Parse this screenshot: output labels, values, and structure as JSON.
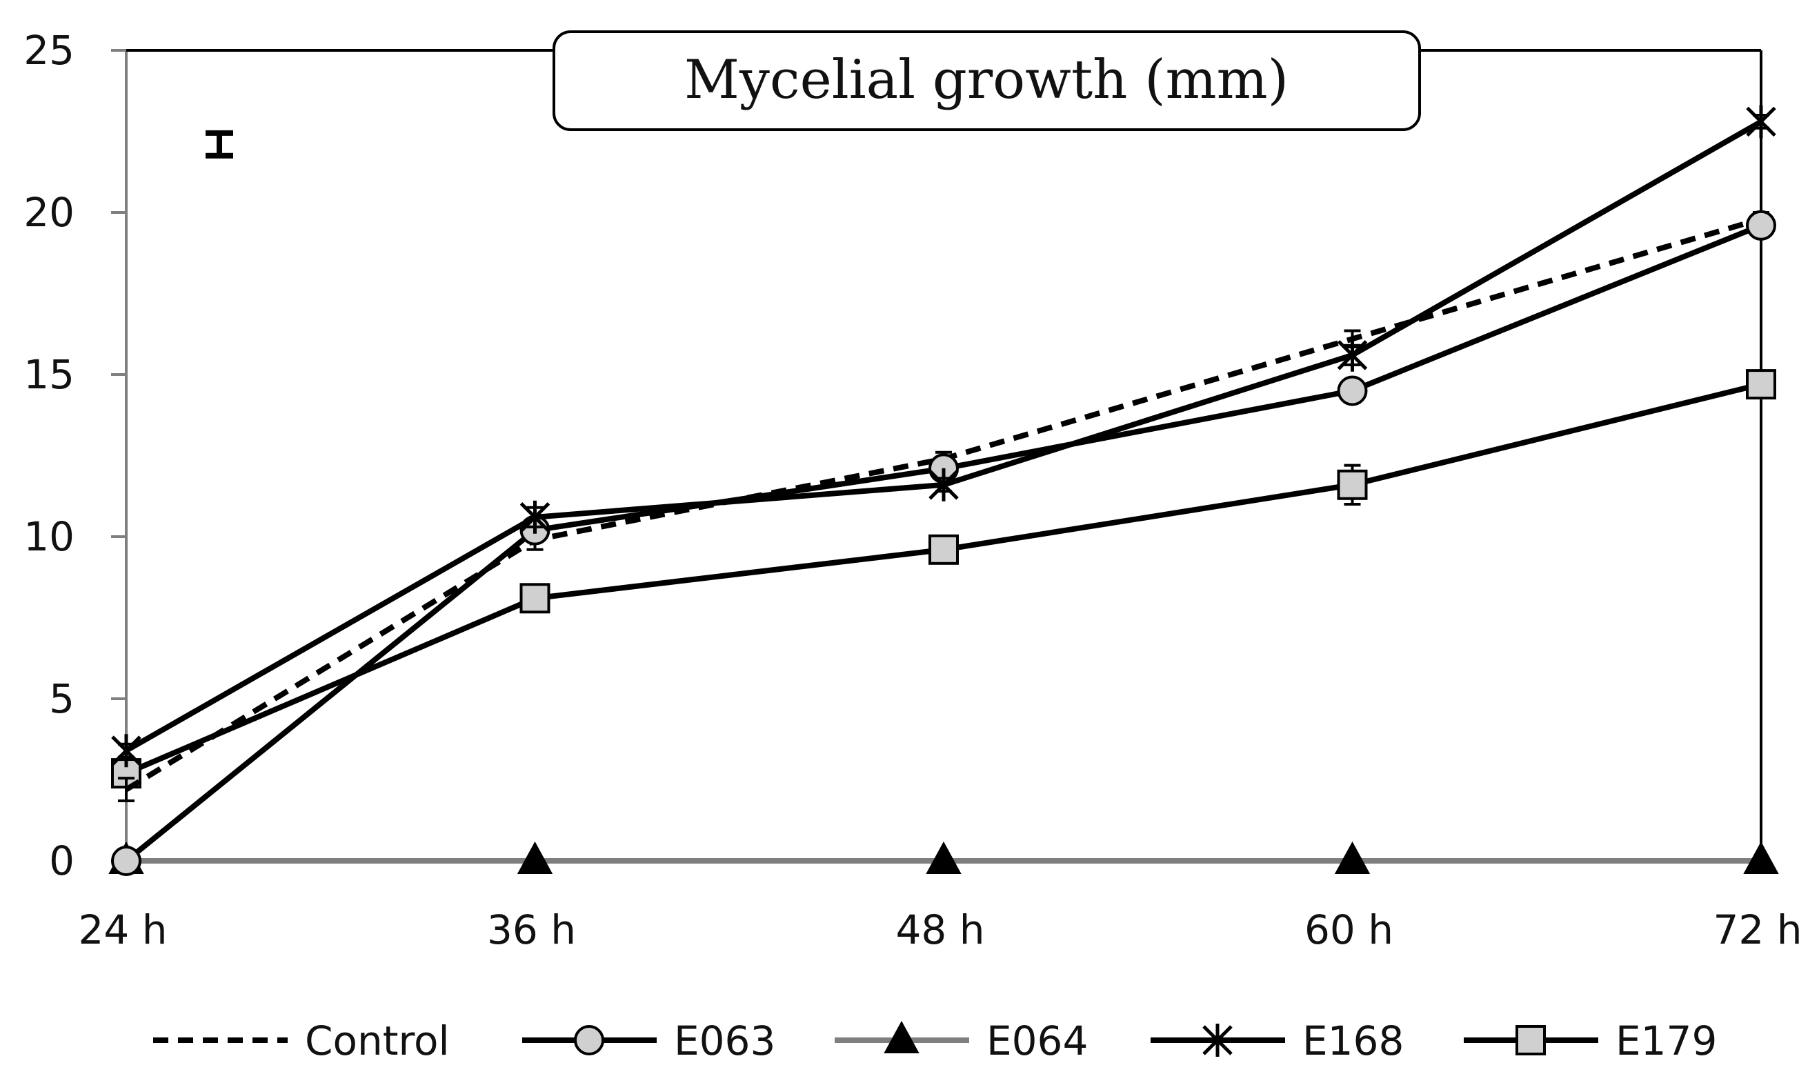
{
  "chart_data": {
    "type": "line",
    "title": "Mycelial growth (mm)",
    "xlabel": "",
    "ylabel": "",
    "categories": [
      "24 h",
      "36 h",
      "48 h",
      "60 h",
      "72 h"
    ],
    "yticks": [
      "0",
      "5",
      "10",
      "15",
      "20",
      "25"
    ],
    "ylim": [
      0,
      25
    ],
    "grid": false,
    "legend_position": "bottom",
    "significance_bar": {
      "y_center": 22.1,
      "half_range": 0.35,
      "position": "top-left"
    },
    "series": [
      {
        "name": "Control",
        "values": [
          2.2,
          9.9,
          12.4,
          16.1,
          19.8
        ],
        "errors": [
          0.35,
          0.3,
          0.2,
          0.25,
          0.2
        ],
        "line": "dashed",
        "marker": "none",
        "color": "#000000"
      },
      {
        "name": "E063",
        "values": [
          0.0,
          10.2,
          12.1,
          14.5,
          19.6
        ],
        "errors": [
          0,
          0.3,
          0.2,
          0.2,
          0.2
        ],
        "line": "solid",
        "marker": "circle",
        "color": "#000000",
        "marker_fill": "#d0d0d0"
      },
      {
        "name": "E064",
        "values": [
          0.0,
          0.0,
          0.0,
          0.0,
          0.0
        ],
        "errors": [
          0,
          0,
          0,
          0,
          0
        ],
        "line": "solid",
        "marker": "triangle",
        "color": "#7f7f7f",
        "marker_fill": "#000000"
      },
      {
        "name": "E168",
        "values": [
          3.4,
          10.6,
          11.6,
          15.6,
          22.8
        ],
        "errors": [
          0.2,
          0.3,
          0.2,
          0.3,
          0.2
        ],
        "line": "solid",
        "marker": "star",
        "color": "#000000"
      },
      {
        "name": "E179",
        "values": [
          2.7,
          8.1,
          9.6,
          11.6,
          14.7
        ],
        "errors": [
          0.2,
          0.2,
          0.2,
          0.6,
          0.3
        ],
        "line": "solid",
        "marker": "square",
        "color": "#000000",
        "marker_fill": "#d0d0d0"
      }
    ]
  }
}
